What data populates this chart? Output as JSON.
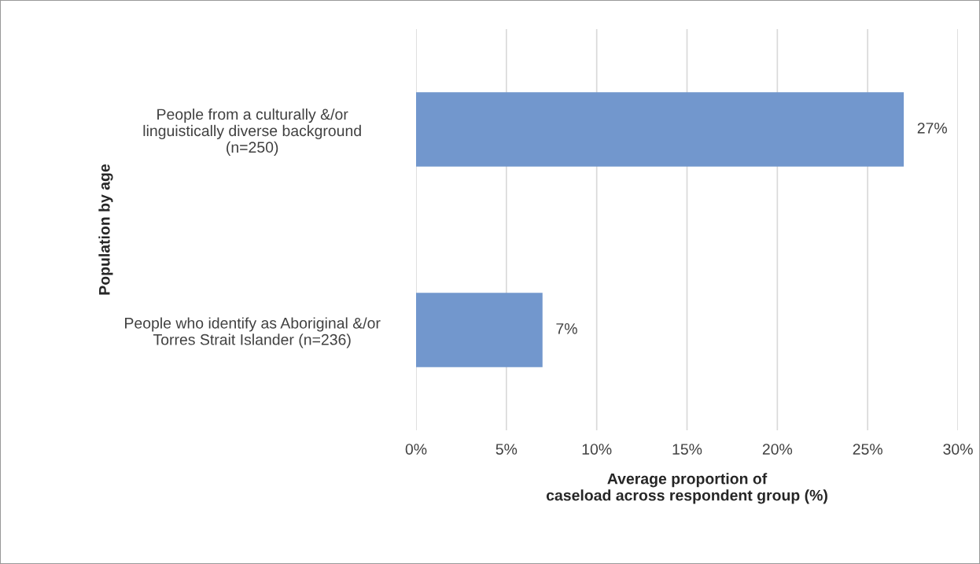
{
  "chart_data": {
    "type": "bar",
    "orientation": "horizontal",
    "categories": [
      "People from a culturally &/or\nlinguistically diverse background\n(n=250)",
      "People who identify as Aboriginal &/or\nTorres Strait Islander (n=236)"
    ],
    "values": [
      27,
      7
    ],
    "color": "#7297cd",
    "value_labels": [
      "27%",
      "7%"
    ],
    "xlim": [
      0,
      30
    ],
    "xticks": [
      {
        "value": 0,
        "label": "0%"
      },
      {
        "value": 5,
        "label": "5%"
      },
      {
        "value": 10,
        "label": "10%"
      },
      {
        "value": 15,
        "label": "15%"
      },
      {
        "value": 20,
        "label": "20%"
      },
      {
        "value": 25,
        "label": "25%"
      },
      {
        "value": 30,
        "label": "30%"
      }
    ],
    "xlabel": "Average proportion of\ncaseload across respondent group (%)",
    "ylabel": "Population by age",
    "grid": "x",
    "legend": false
  }
}
